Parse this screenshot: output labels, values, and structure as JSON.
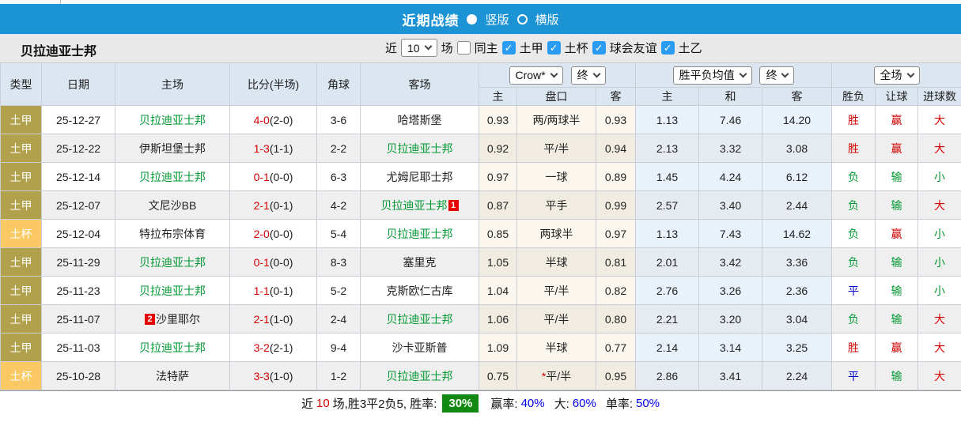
{
  "colors": {
    "topbar_blue": "#1c93d5",
    "header_bg": "#dce6f1",
    "league_gold": "#b2a14c",
    "cup_gold": "#fbc963",
    "win_red": "#d40000",
    "lose_green": "#009933",
    "draw_blue": "#0000cc",
    "rate_badge_green": "#128a12",
    "checkbox_blue": "#2b9cf4"
  },
  "topbar": {
    "title": "近期战绩",
    "view_options": [
      {
        "label": "竖版",
        "selected": true
      },
      {
        "label": "横版",
        "selected": false
      }
    ]
  },
  "filterbar": {
    "team": "贝拉迪亚士邦",
    "near_label": "近",
    "count_value": "10",
    "games_label": "场",
    "same_home": {
      "label": "同主",
      "checked": false
    },
    "leagues": [
      {
        "label": "土甲",
        "checked": true
      },
      {
        "label": "土杯",
        "checked": true
      },
      {
        "label": "球会友谊",
        "checked": true
      },
      {
        "label": "土乙",
        "checked": true
      }
    ]
  },
  "table": {
    "headers": {
      "type": "类型",
      "date": "日期",
      "home": "主场",
      "score": "比分(半场)",
      "corner": "角球",
      "away": "客场",
      "odds_company_select": "Crow*",
      "odds_time_select": "终",
      "avg_select": "胜平负均值",
      "avg_time_select": "终",
      "result_select": "全场",
      "sub_cols": [
        "主",
        "盘口",
        "客",
        "主",
        "和",
        "客",
        "胜负",
        "让球",
        "进球数"
      ]
    },
    "rows": [
      {
        "type": "土甲",
        "type_style": "league",
        "date": "25-12-27",
        "home": "贝拉迪亚士邦",
        "home_green": true,
        "home_badge": "",
        "score": "4-0",
        "half": "(2-0)",
        "corner": "3-6",
        "away": "哈塔斯堡",
        "away_green": false,
        "away_badge": "",
        "odds": [
          "0.93",
          "两/两球半",
          "0.93"
        ],
        "avg": [
          "1.13",
          "7.46",
          "14.20"
        ],
        "results": [
          [
            "胜",
            "r"
          ],
          [
            "赢",
            "r"
          ],
          [
            "大",
            "r"
          ]
        ]
      },
      {
        "type": "土甲",
        "type_style": "league",
        "date": "25-12-22",
        "home": "伊斯坦堡士邦",
        "home_green": false,
        "home_badge": "",
        "score": "1-3",
        "half": "(1-1)",
        "corner": "2-2",
        "away": "贝拉迪亚士邦",
        "away_green": true,
        "away_badge": "",
        "odds": [
          "0.92",
          "平/半",
          "0.94"
        ],
        "avg": [
          "2.13",
          "3.32",
          "3.08"
        ],
        "results": [
          [
            "胜",
            "r"
          ],
          [
            "赢",
            "r"
          ],
          [
            "大",
            "r"
          ]
        ]
      },
      {
        "type": "土甲",
        "type_style": "league",
        "date": "25-12-14",
        "home": "贝拉迪亚士邦",
        "home_green": true,
        "home_badge": "",
        "score": "0-1",
        "half": "(0-0)",
        "corner": "6-3",
        "away": "尤姆尼耶士邦",
        "away_green": false,
        "away_badge": "",
        "odds": [
          "0.97",
          "一球",
          "0.89"
        ],
        "avg": [
          "1.45",
          "4.24",
          "6.12"
        ],
        "results": [
          [
            "负",
            "g"
          ],
          [
            "输",
            "g"
          ],
          [
            "小",
            "g"
          ]
        ]
      },
      {
        "type": "土甲",
        "type_style": "league",
        "date": "25-12-07",
        "home": "文尼沙BB",
        "home_green": false,
        "home_badge": "",
        "score": "2-1",
        "half": "(0-1)",
        "corner": "4-2",
        "away": "贝拉迪亚士邦",
        "away_green": true,
        "away_badge": "1",
        "odds": [
          "0.87",
          "平手",
          "0.99"
        ],
        "avg": [
          "2.57",
          "3.40",
          "2.44"
        ],
        "results": [
          [
            "负",
            "g"
          ],
          [
            "输",
            "g"
          ],
          [
            "大",
            "r"
          ]
        ]
      },
      {
        "type": "土杯",
        "type_style": "cup",
        "date": "25-12-04",
        "home": "特拉布宗体育",
        "home_green": false,
        "home_badge": "",
        "score": "2-0",
        "half": "(0-0)",
        "corner": "5-4",
        "away": "贝拉迪亚士邦",
        "away_green": true,
        "away_badge": "",
        "odds": [
          "0.85",
          "两球半",
          "0.97"
        ],
        "avg": [
          "1.13",
          "7.43",
          "14.62"
        ],
        "results": [
          [
            "负",
            "g"
          ],
          [
            "赢",
            "r"
          ],
          [
            "小",
            "g"
          ]
        ]
      },
      {
        "type": "土甲",
        "type_style": "league",
        "date": "25-11-29",
        "home": "贝拉迪亚士邦",
        "home_green": true,
        "home_badge": "",
        "score": "0-1",
        "half": "(0-0)",
        "corner": "8-3",
        "away": "塞里克",
        "away_green": false,
        "away_badge": "",
        "odds": [
          "1.05",
          "半球",
          "0.81"
        ],
        "avg": [
          "2.01",
          "3.42",
          "3.36"
        ],
        "results": [
          [
            "负",
            "g"
          ],
          [
            "输",
            "g"
          ],
          [
            "小",
            "g"
          ]
        ]
      },
      {
        "type": "土甲",
        "type_style": "league",
        "date": "25-11-23",
        "home": "贝拉迪亚士邦",
        "home_green": true,
        "home_badge": "",
        "score": "1-1",
        "half": "(0-1)",
        "corner": "5-2",
        "away": "克斯欧仁古库",
        "away_green": false,
        "away_badge": "",
        "odds": [
          "1.04",
          "平/半",
          "0.82"
        ],
        "avg": [
          "2.76",
          "3.26",
          "2.36"
        ],
        "results": [
          [
            "平",
            "b"
          ],
          [
            "输",
            "g"
          ],
          [
            "小",
            "g"
          ]
        ]
      },
      {
        "type": "土甲",
        "type_style": "league",
        "date": "25-11-07",
        "home": "沙里耶尔",
        "home_green": false,
        "home_badge": "2",
        "score": "2-1",
        "half": "(1-0)",
        "corner": "2-4",
        "away": "贝拉迪亚士邦",
        "away_green": true,
        "away_badge": "",
        "odds": [
          "1.06",
          "平/半",
          "0.80"
        ],
        "avg": [
          "2.21",
          "3.20",
          "3.04"
        ],
        "results": [
          [
            "负",
            "g"
          ],
          [
            "输",
            "g"
          ],
          [
            "大",
            "r"
          ]
        ]
      },
      {
        "type": "土甲",
        "type_style": "league",
        "date": "25-11-03",
        "home": "贝拉迪亚士邦",
        "home_green": true,
        "home_badge": "",
        "score": "3-2",
        "half": "(2-1)",
        "corner": "9-4",
        "away": "沙卡亚斯普",
        "away_green": false,
        "away_badge": "",
        "odds": [
          "1.09",
          "半球",
          "0.77"
        ],
        "avg": [
          "2.14",
          "3.14",
          "3.25"
        ],
        "results": [
          [
            "胜",
            "r"
          ],
          [
            "赢",
            "r"
          ],
          [
            "大",
            "r"
          ]
        ]
      },
      {
        "type": "土杯",
        "type_style": "cup",
        "date": "25-10-28",
        "home": "法特萨",
        "home_green": false,
        "home_badge": "",
        "score": "3-3",
        "half": "(1-0)",
        "corner": "1-2",
        "away": "贝拉迪亚士邦",
        "away_green": true,
        "away_badge": "",
        "odds": [
          "0.75",
          "*平/半",
          "0.95"
        ],
        "avg": [
          "2.86",
          "3.41",
          "2.24"
        ],
        "results": [
          [
            "平",
            "b"
          ],
          [
            "输",
            "g"
          ],
          [
            "大",
            "r"
          ]
        ]
      }
    ]
  },
  "summary": {
    "prefix": "近",
    "count": "10",
    "mid": "场,胜3平2负5, 胜率:",
    "win_rate": "30%",
    "stats": [
      {
        "label": "赢率:",
        "value": "40%"
      },
      {
        "label": "大:",
        "value": "60%"
      },
      {
        "label": "单率:",
        "value": "50%"
      }
    ]
  }
}
